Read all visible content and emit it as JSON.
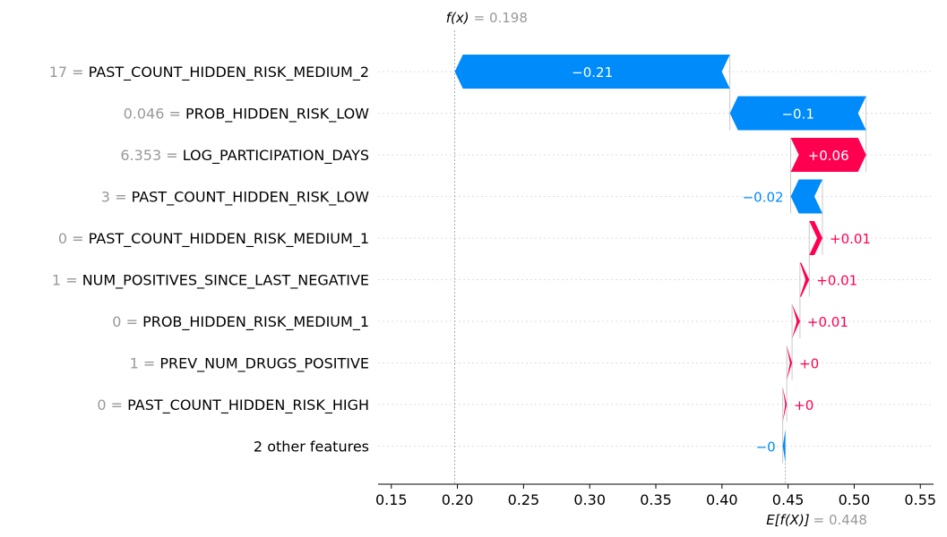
{
  "chart_data": {
    "type": "waterfall",
    "fx": {
      "label": "f(x)",
      "value_text": "= 0.198",
      "value": 0.198
    },
    "efx": {
      "label": "E[f(X)]",
      "value_text": "= 0.448",
      "value": 0.448
    },
    "xlim": [
      0.14,
      0.56
    ],
    "xticks": [
      0.15,
      0.2,
      0.25,
      0.3,
      0.35,
      0.4,
      0.45,
      0.5,
      0.55
    ],
    "xtick_labels": [
      "0.15",
      "0.20",
      "0.25",
      "0.30",
      "0.35",
      "0.40",
      "0.45",
      "0.50",
      "0.55"
    ],
    "features": [
      {
        "value": "17",
        "name": "PAST_COUNT_HIDDEN_RISK_MEDIUM_2",
        "shap": -0.208,
        "label": "−0.21"
      },
      {
        "value": "0.046",
        "name": "PROB_HIDDEN_RISK_LOW",
        "shap": -0.103,
        "label": "−0.1"
      },
      {
        "value": "6.353",
        "name": "LOG_PARTICIPATION_DAYS",
        "shap": 0.057,
        "label": "+0.06"
      },
      {
        "value": "3",
        "name": "PAST_COUNT_HIDDEN_RISK_LOW",
        "shap": -0.024,
        "label": "−0.02"
      },
      {
        "value": "0",
        "name": "PAST_COUNT_HIDDEN_RISK_MEDIUM_1",
        "shap": 0.01,
        "label": "+0.01"
      },
      {
        "value": "1",
        "name": "NUM_POSITIVES_SINCE_LAST_NEGATIVE",
        "shap": 0.007,
        "label": "+0.01"
      },
      {
        "value": "0",
        "name": "PROB_HIDDEN_RISK_MEDIUM_1",
        "shap": 0.006,
        "label": "+0.01"
      },
      {
        "value": "1",
        "name": "PREV_NUM_DRUGS_POSITIVE",
        "shap": 0.004,
        "label": "+0"
      },
      {
        "value": "0",
        "name": "PAST_COUNT_HIDDEN_RISK_HIGH",
        "shap": 0.003,
        "label": "+0"
      },
      {
        "value": "",
        "name": "2 other features",
        "shap": -0.002,
        "label": "−0"
      }
    ],
    "colors": {
      "positive": "#ff0051",
      "negative": "#008bfb",
      "grid": "#cccccc",
      "axis": "#000000"
    }
  }
}
